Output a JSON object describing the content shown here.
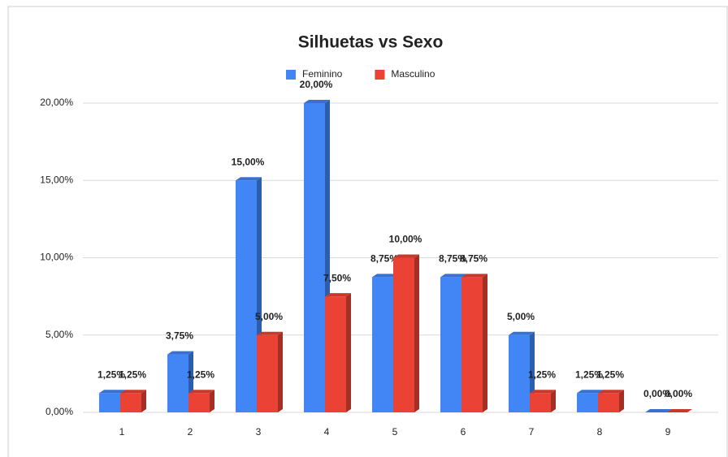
{
  "chart_data": {
    "type": "bar",
    "title": "Silhuetas vs Sexo",
    "categories": [
      "1",
      "2",
      "3",
      "4",
      "5",
      "6",
      "7",
      "8",
      "9"
    ],
    "series": [
      {
        "name": "Feminino",
        "color": "#4285f4",
        "values": [
          1.25,
          3.75,
          15,
          20,
          8.75,
          8.75,
          5,
          1.25,
          0
        ],
        "value_labels": [
          "1,25%",
          "3,75%",
          "15,00%",
          "20,00%",
          "8,75%",
          "8,75%",
          "5,00%",
          "1,25%",
          "0,00%"
        ]
      },
      {
        "name": "Masculino",
        "color": "#ea4335",
        "values": [
          1.25,
          1.25,
          5,
          7.5,
          10,
          8.75,
          1.25,
          1.25,
          0
        ],
        "value_labels": [
          "1,25%",
          "1,25%",
          "5,00%",
          "7,50%",
          "10,00%",
          "8,75%",
          "1,25%",
          "1,25%",
          "0,00%"
        ]
      }
    ],
    "ylim": [
      0,
      20
    ],
    "yticks": [
      {
        "value": 0,
        "label": "0,00%"
      },
      {
        "value": 5,
        "label": "5,00%"
      },
      {
        "value": 10,
        "label": "10,00%"
      },
      {
        "value": 15,
        "label": "15,00%"
      },
      {
        "value": 20,
        "label": "20,00%"
      }
    ],
    "grid": true,
    "legend": "top"
  }
}
